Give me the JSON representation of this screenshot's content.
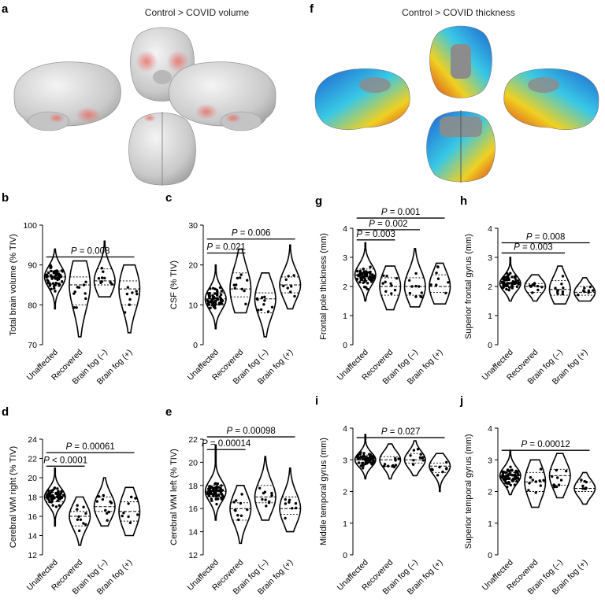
{
  "headers": {
    "volume": "Control > COVID volume",
    "thickness": "Control > COVID thickness"
  },
  "brain_panels": [
    {
      "letter": "a"
    },
    {
      "letter": "f"
    }
  ],
  "colors": {
    "brain_gray": "#cfcfcf",
    "highlight_red": "#e8706a",
    "thickness_blue": "#1e5fd0",
    "thickness_cyan": "#38c8e6",
    "thickness_yellow": "#f0d020",
    "thickness_red": "#d83a20"
  },
  "chart_data": [
    {
      "letter": "b",
      "type": "violin",
      "ylabel": "Total brain volume (% TIV)",
      "ylim": [
        70,
        100
      ],
      "yticks": [
        70,
        80,
        90,
        100
      ],
      "categories": [
        "Unaffected",
        "Recovered",
        "Brain fog (–)",
        "Brain fog (+)"
      ],
      "groups": [
        {
          "min": 79,
          "max": 94,
          "median": 87,
          "q1": 85.5,
          "q3": 88.5,
          "n": 60
        },
        {
          "min": 72,
          "max": 91,
          "median": 85,
          "q1": 80,
          "q3": 87,
          "n": 10
        },
        {
          "min": 82,
          "max": 96,
          "median": 86,
          "q1": 85,
          "q3": 89,
          "n": 10
        },
        {
          "min": 73,
          "max": 90,
          "median": 84,
          "q1": 80,
          "q3": 86,
          "n": 8
        }
      ],
      "comparisons": [
        {
          "from": 0,
          "to": 3,
          "prefix": "P",
          "text": " = 0.008",
          "y": 92
        }
      ]
    },
    {
      "letter": "c",
      "type": "violin",
      "ylabel": "CSF (% TIV)",
      "ylim": [
        0,
        30
      ],
      "yticks": [
        0,
        10,
        20,
        30
      ],
      "categories": [
        "Unaffected",
        "Recovered",
        "Brain fog (–)",
        "Brain fog (+)"
      ],
      "groups": [
        {
          "min": 4,
          "max": 20,
          "median": 11.5,
          "q1": 10,
          "q3": 13,
          "n": 60
        },
        {
          "min": 8,
          "max": 24,
          "median": 14,
          "q1": 12,
          "q3": 18,
          "n": 10
        },
        {
          "min": 2,
          "max": 18,
          "median": 11.5,
          "q1": 8,
          "q3": 13,
          "n": 10
        },
        {
          "min": 9,
          "max": 25,
          "median": 15,
          "q1": 13,
          "q3": 17,
          "n": 8
        }
      ],
      "comparisons": [
        {
          "from": 0,
          "to": 1,
          "prefix": "P",
          "text": " = 0.021",
          "y": 23
        },
        {
          "from": 0,
          "to": 3,
          "prefix": "P",
          "text": " = 0.006",
          "y": 26.5
        }
      ]
    },
    {
      "letter": "g",
      "type": "violin",
      "ylabel": "Frontal pole thickness (mm)",
      "ylim": [
        0,
        4
      ],
      "yticks": [
        0,
        1,
        2,
        3,
        4
      ],
      "categories": [
        "Unaffected",
        "Recovered",
        "Brain fog (–)",
        "Brain fog (+)"
      ],
      "groups": [
        {
          "min": 1.5,
          "max": 3.5,
          "median": 2.4,
          "q1": 2.2,
          "q3": 2.6,
          "n": 60
        },
        {
          "min": 1.2,
          "max": 2.7,
          "median": 2.0,
          "q1": 1.7,
          "q3": 2.3,
          "n": 10
        },
        {
          "min": 1.3,
          "max": 3.3,
          "median": 2.0,
          "q1": 1.7,
          "q3": 2.3,
          "n": 10
        },
        {
          "min": 1.4,
          "max": 2.8,
          "median": 2.0,
          "q1": 1.8,
          "q3": 2.4,
          "n": 8
        }
      ],
      "comparisons": [
        {
          "from": 0,
          "to": 1,
          "prefix": "P",
          "text": " = 0.003",
          "y": 3.6
        },
        {
          "from": 0,
          "to": 2,
          "prefix": "P",
          "text": " = 0.002",
          "y": 3.95
        },
        {
          "from": 0,
          "to": 3,
          "prefix": "P",
          "text": " = 0.001",
          "y": 4.35
        }
      ]
    },
    {
      "letter": "h",
      "type": "violin",
      "ylabel": "Superior frontal gyrus (mm)",
      "ylim": [
        0,
        4
      ],
      "yticks": [
        0,
        1,
        2,
        3,
        4
      ],
      "categories": [
        "Unaffected",
        "Recovered",
        "Brain fog (–)",
        "Brain fog (+)"
      ],
      "groups": [
        {
          "min": 1.5,
          "max": 3.0,
          "median": 2.1,
          "q1": 2.0,
          "q3": 2.3,
          "n": 60
        },
        {
          "min": 1.5,
          "max": 2.4,
          "median": 2.0,
          "q1": 1.8,
          "q3": 2.1,
          "n": 10
        },
        {
          "min": 1.4,
          "max": 2.7,
          "median": 1.9,
          "q1": 1.7,
          "q3": 2.2,
          "n": 10
        },
        {
          "min": 1.5,
          "max": 2.3,
          "median": 1.8,
          "q1": 1.7,
          "q3": 2.0,
          "n": 8
        }
      ],
      "comparisons": [
        {
          "from": 0,
          "to": 2,
          "prefix": "P",
          "text": " = 0.003",
          "y": 3.15
        },
        {
          "from": 0,
          "to": 3,
          "prefix": "P",
          "text": " = 0.008",
          "y": 3.5
        }
      ]
    },
    {
      "letter": "d",
      "type": "violin",
      "ylabel": "Cerebral WM right (% TIV)",
      "ylim": [
        12,
        24
      ],
      "yticks": [
        12,
        14,
        16,
        18,
        20,
        22,
        24
      ],
      "categories": [
        "Unaffected",
        "Recovered",
        "Brain fog (–)",
        "Brain fog (+)"
      ],
      "groups": [
        {
          "min": 15,
          "max": 21,
          "median": 18,
          "q1": 17.5,
          "q3": 18.5,
          "n": 60
        },
        {
          "min": 13,
          "max": 18,
          "median": 16,
          "q1": 15,
          "q3": 16.5,
          "n": 10
        },
        {
          "min": 15,
          "max": 20,
          "median": 17,
          "q1": 16.5,
          "q3": 18,
          "n": 10
        },
        {
          "min": 14,
          "max": 19,
          "median": 16.5,
          "q1": 15.5,
          "q3": 17.5,
          "n": 8
        }
      ],
      "comparisons": [
        {
          "from": 0,
          "to": 1,
          "prefix": "P",
          "text": " < 0.0001",
          "y": 21.2
        },
        {
          "from": 0,
          "to": 3,
          "prefix": "P",
          "text": " = 0.00061",
          "y": 22.6
        }
      ]
    },
    {
      "letter": "e",
      "type": "violin",
      "ylabel": "Cerebral WM left (% TIV)",
      "ylim": [
        12,
        22
      ],
      "yticks": [
        12,
        14,
        16,
        18,
        20,
        22
      ],
      "categories": [
        "Unaffected",
        "Recovered",
        "Brain fog (–)",
        "Brain fog (+)"
      ],
      "groups": [
        {
          "min": 15,
          "max": 21.5,
          "median": 17.5,
          "q1": 17,
          "q3": 18,
          "n": 60
        },
        {
          "min": 13,
          "max": 18,
          "median": 16,
          "q1": 15,
          "q3": 16.5,
          "n": 10
        },
        {
          "min": 15,
          "max": 20.5,
          "median": 17,
          "q1": 16.5,
          "q3": 18,
          "n": 10
        },
        {
          "min": 14,
          "max": 19.5,
          "median": 16,
          "q1": 15.5,
          "q3": 17,
          "n": 8
        }
      ],
      "comparisons": [
        {
          "from": 0,
          "to": 1,
          "prefix": "P",
          "text": " = 0.00014",
          "y": 21.1
        },
        {
          "from": 0,
          "to": 3,
          "prefix": "P",
          "text": " = 0.00098",
          "y": 22.2
        }
      ]
    },
    {
      "letter": "i",
      "type": "violin",
      "ylabel": "Middle temporal gyrus (mm)",
      "ylim": [
        0,
        4
      ],
      "yticks": [
        0,
        1,
        2,
        3,
        4
      ],
      "categories": [
        "Unaffected",
        "Recovered",
        "Brain fog (–)",
        "Brain fog (+)"
      ],
      "groups": [
        {
          "min": 2.4,
          "max": 3.8,
          "median": 3.0,
          "q1": 2.9,
          "q3": 3.15,
          "n": 60
        },
        {
          "min": 2.4,
          "max": 3.5,
          "median": 3.0,
          "q1": 2.8,
          "q3": 3.1,
          "n": 10
        },
        {
          "min": 2.5,
          "max": 3.6,
          "median": 3.0,
          "q1": 2.9,
          "q3": 3.2,
          "n": 10
        },
        {
          "min": 2.0,
          "max": 3.2,
          "median": 2.8,
          "q1": 2.6,
          "q3": 2.9,
          "n": 8
        }
      ],
      "comparisons": [
        {
          "from": 0,
          "to": 3,
          "prefix": "P",
          "text": " = 0.027",
          "y": 3.7
        }
      ]
    },
    {
      "letter": "j",
      "type": "violin",
      "ylabel": "Superior temporal gyrus (mm)",
      "ylim": [
        0,
        4
      ],
      "yticks": [
        0,
        1,
        2,
        3,
        4
      ],
      "categories": [
        "Unaffected",
        "Recovered",
        "Brain fog (–)",
        "Brain fog (+)"
      ],
      "groups": [
        {
          "min": 1.9,
          "max": 3.3,
          "median": 2.5,
          "q1": 2.3,
          "q3": 2.6,
          "n": 60
        },
        {
          "min": 1.5,
          "max": 3.0,
          "median": 2.3,
          "q1": 2.0,
          "q3": 2.6,
          "n": 10
        },
        {
          "min": 1.8,
          "max": 3.2,
          "median": 2.5,
          "q1": 2.2,
          "q3": 2.7,
          "n": 10
        },
        {
          "min": 1.6,
          "max": 2.6,
          "median": 2.1,
          "q1": 2.0,
          "q3": 2.3,
          "n": 8
        }
      ],
      "comparisons": [
        {
          "from": 0,
          "to": 3,
          "prefix": "P",
          "text": " = 0.00012",
          "y": 3.3
        }
      ]
    }
  ]
}
